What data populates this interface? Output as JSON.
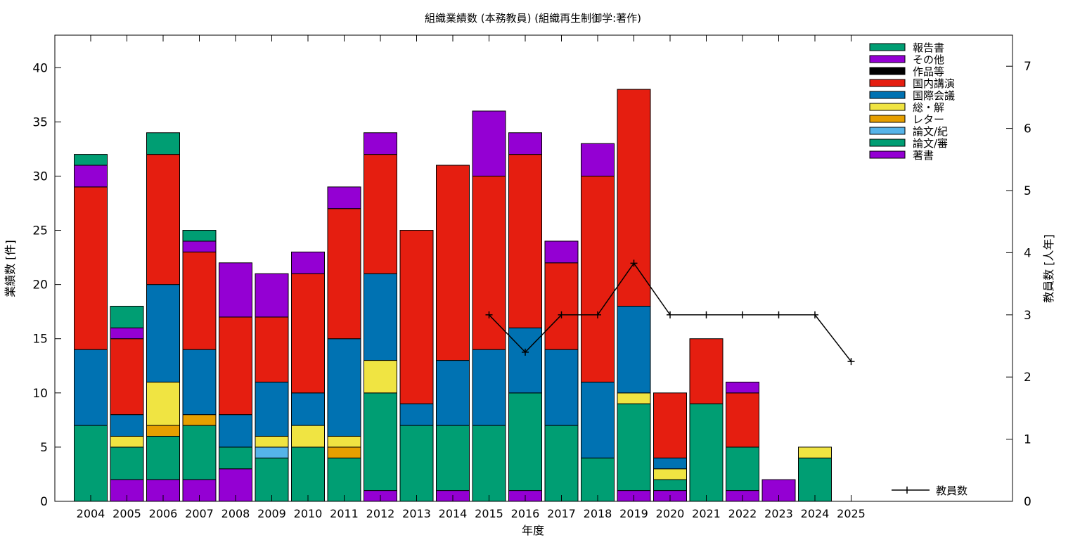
{
  "chart_data": {
    "type": "bar",
    "stacked": true,
    "title": "組織業績数 (本務教員) (組織再生制御学:著作)",
    "xlabel": "年度",
    "ylabel": "業績数 [件]",
    "y2label": "教員数 [人年]",
    "ylim": [
      0,
      43
    ],
    "y2lim": [
      0,
      7.5
    ],
    "yticks": [
      "0",
      "5",
      "10",
      "15",
      "20",
      "25",
      "30",
      "35",
      "40"
    ],
    "y2ticks": [
      "0",
      "1",
      "2",
      "3",
      "4",
      "5",
      "6",
      "7"
    ],
    "grid": false,
    "legend_position": "top-right",
    "categories": [
      "2004",
      "2005",
      "2006",
      "2007",
      "2008",
      "2009",
      "2010",
      "2011",
      "2012",
      "2013",
      "2014",
      "2015",
      "2016",
      "2017",
      "2018",
      "2019",
      "2020",
      "2021",
      "2022",
      "2023",
      "2024",
      "2025"
    ],
    "series": [
      {
        "name": "著書",
        "color": "#9400d3",
        "values": [
          0,
          2,
          2,
          2,
          3,
          0,
          0,
          0,
          1,
          0,
          1,
          0,
          1,
          0,
          0,
          1,
          1,
          0,
          1,
          2,
          0,
          0
        ]
      },
      {
        "name": "論文/審",
        "color": "#009e73",
        "values": [
          7,
          3,
          4,
          5,
          2,
          4,
          5,
          4,
          9,
          7,
          6,
          7,
          9,
          7,
          4,
          8,
          1,
          9,
          4,
          0,
          4,
          0
        ]
      },
      {
        "name": "論文/紀",
        "color": "#56b4e9",
        "values": [
          0,
          0,
          0,
          0,
          0,
          1,
          0,
          0,
          0,
          0,
          0,
          0,
          0,
          0,
          0,
          0,
          0,
          0,
          0,
          0,
          0,
          0
        ]
      },
      {
        "name": "レター",
        "color": "#e69f00",
        "values": [
          0,
          0,
          1,
          1,
          0,
          0,
          0,
          1,
          0,
          0,
          0,
          0,
          0,
          0,
          0,
          0,
          0,
          0,
          0,
          0,
          0,
          0
        ]
      },
      {
        "name": "総・解",
        "color": "#f0e442",
        "values": [
          0,
          1,
          4,
          0,
          0,
          1,
          2,
          1,
          3,
          0,
          0,
          0,
          0,
          0,
          0,
          1,
          1,
          0,
          0,
          0,
          1,
          0
        ]
      },
      {
        "name": "国際会議",
        "color": "#0072b2",
        "values": [
          7,
          2,
          9,
          6,
          3,
          5,
          3,
          9,
          8,
          2,
          6,
          7,
          6,
          7,
          7,
          8,
          1,
          0,
          0,
          0,
          0,
          0
        ]
      },
      {
        "name": "国内講演",
        "color": "#e51e10",
        "values": [
          15,
          7,
          12,
          9,
          9,
          6,
          11,
          12,
          11,
          16,
          18,
          16,
          16,
          8,
          19,
          20,
          6,
          6,
          5,
          0,
          0,
          0
        ]
      },
      {
        "name": "作品等",
        "color": "#000000",
        "values": [
          0,
          0,
          0,
          0,
          0,
          0,
          0,
          0,
          0,
          0,
          0,
          0,
          0,
          0,
          0,
          0,
          0,
          0,
          0,
          0,
          0,
          0
        ]
      },
      {
        "name": "その他",
        "color": "#9400d3",
        "values": [
          2,
          1,
          0,
          1,
          5,
          4,
          2,
          2,
          2,
          0,
          0,
          6,
          2,
          2,
          3,
          0,
          0,
          0,
          1,
          0,
          0,
          0
        ]
      },
      {
        "name": "報告書",
        "color": "#009e73",
        "values": [
          1,
          2,
          2,
          1,
          0,
          0,
          0,
          0,
          0,
          0,
          0,
          0,
          0,
          0,
          0,
          0,
          0,
          0,
          0,
          0,
          0,
          0
        ]
      }
    ],
    "line_series": {
      "name": "教員数",
      "axis": "y2",
      "color": "#000000",
      "points": [
        {
          "x": "2015",
          "y": 3.0
        },
        {
          "x": "2016",
          "y": 2.4
        },
        {
          "x": "2017",
          "y": 3.0
        },
        {
          "x": "2018",
          "y": 3.0
        },
        {
          "x": "2019",
          "y": 3.83
        },
        {
          "x": "2020",
          "y": 3.0
        },
        {
          "x": "2021",
          "y": 3.0
        },
        {
          "x": "2022",
          "y": 3.0
        },
        {
          "x": "2023",
          "y": 3.0
        },
        {
          "x": "2024",
          "y": 3.0
        },
        {
          "x": "2025",
          "y": 2.25
        }
      ]
    },
    "legend_order": [
      "報告書",
      "その他",
      "作品等",
      "国内講演",
      "国際会議",
      "総・解",
      "レター",
      "論文/紀",
      "論文/審",
      "著書"
    ]
  }
}
